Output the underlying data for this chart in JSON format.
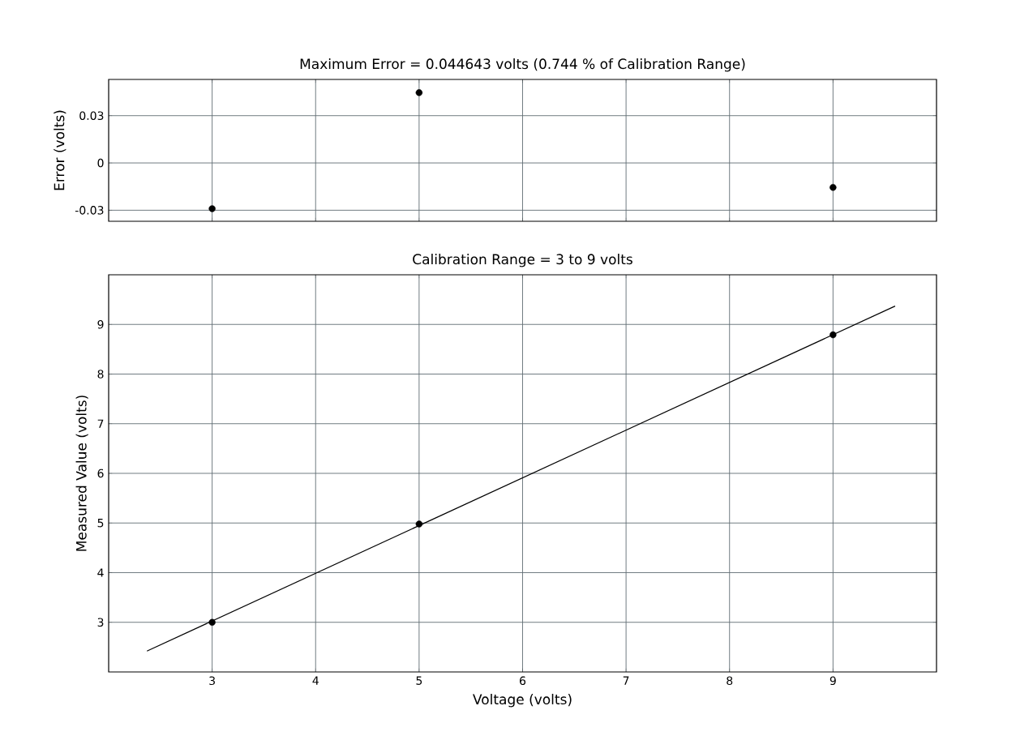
{
  "chart_data": [
    {
      "type": "scatter",
      "title": "Maximum Error = 0.044643 volts   (0.744 % of Calibration Range)",
      "ylabel": "Error (volts)",
      "series": [
        {
          "x": [
            3,
            5,
            9
          ],
          "values": [
            -0.029,
            0.0446,
            -0.0155
          ],
          "color": "#000000"
        }
      ],
      "xlim": [
        2,
        10
      ],
      "xticks": [
        3,
        4,
        5,
        6,
        7,
        8,
        9
      ],
      "ylim": [
        -0.037,
        0.053
      ],
      "yticks": [
        -0.03,
        0,
        0.03
      ],
      "tick_labels": "y",
      "grid": true,
      "marker": "circle"
    },
    {
      "type": "scatter",
      "title": "Calibration Range = 3 to 9 volts",
      "xlabel": "Voltage (volts)",
      "ylabel": "Measured Value (volts)",
      "series": [
        {
          "x": [
            3,
            5,
            9
          ],
          "values": [
            3,
            4.98,
            8.79
          ],
          "color": "#000000"
        },
        {
          "type": "line",
          "x": [
            2.37,
            9.6
          ],
          "values": [
            2.42,
            9.37
          ],
          "color": "#000000",
          "marker": "none"
        }
      ],
      "xlim": [
        2,
        10
      ],
      "xticks": [
        3,
        4,
        5,
        6,
        7,
        8,
        9
      ],
      "ylim": [
        2,
        10
      ],
      "yticks": [
        3,
        4,
        5,
        6,
        7,
        8,
        9
      ],
      "grid": true,
      "marker": "circle"
    }
  ]
}
